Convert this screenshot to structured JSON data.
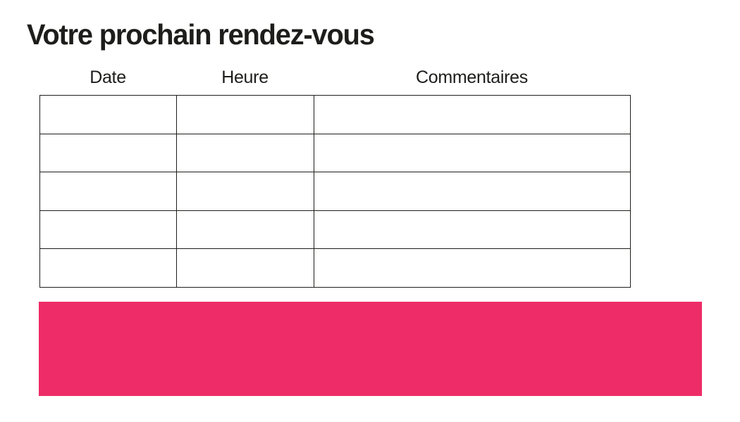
{
  "page": {
    "title": "Votre prochain rendez-vous"
  },
  "table": {
    "headers": [
      "Date",
      "Heure",
      "Commentaires"
    ],
    "rows": [
      [
        "",
        "",
        ""
      ],
      [
        "",
        "",
        ""
      ],
      [
        "",
        "",
        ""
      ],
      [
        "",
        "",
        ""
      ],
      [
        "",
        "",
        ""
      ]
    ]
  },
  "colors": {
    "accent_pink": "#EE2C67",
    "text": "#1D1D1B",
    "table_border": "#1D1D1B"
  }
}
